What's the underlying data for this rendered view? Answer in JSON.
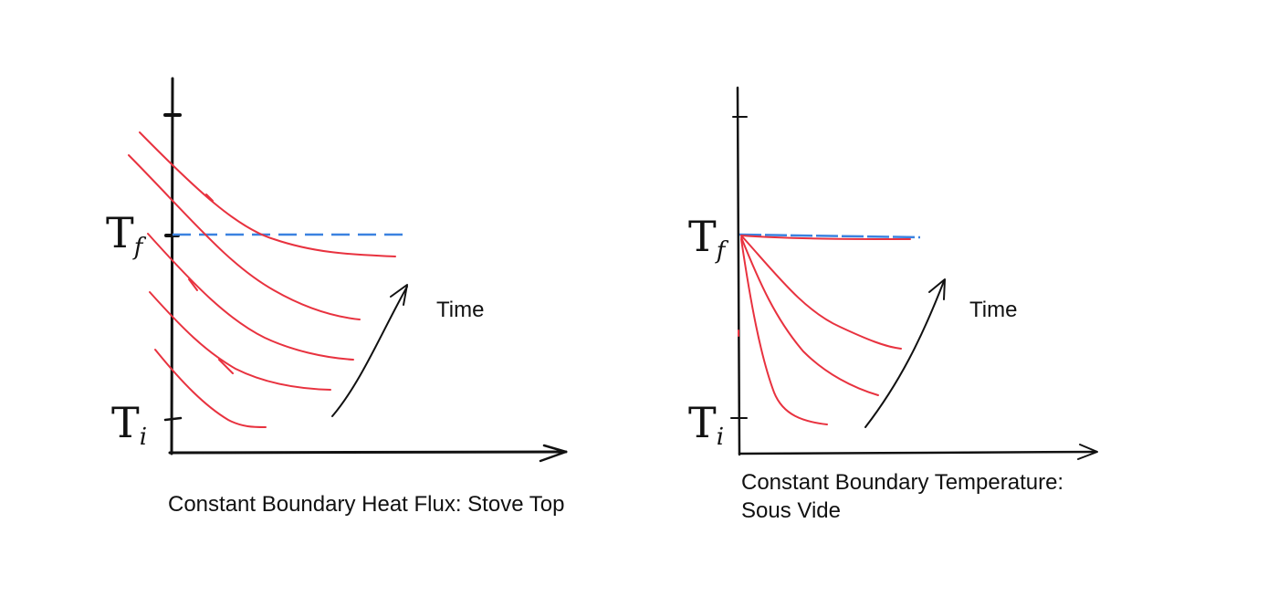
{
  "panels": [
    {
      "caption_lines": [
        "Constant Boundary Heat Flux: Stove Top"
      ],
      "arrow_label": "Time",
      "y_labels": {
        "final": {
          "main": "T",
          "sub": "f"
        },
        "initial": {
          "main": "T",
          "sub": "i"
        }
      }
    },
    {
      "caption_lines": [
        "Constant Boundary Temperature:",
        "Sous Vide"
      ],
      "arrow_label": "Time",
      "y_labels": {
        "final": {
          "main": "T",
          "sub": "f"
        },
        "initial": {
          "main": "T",
          "sub": "i"
        }
      }
    }
  ],
  "colors": {
    "curve": "#e8323f",
    "reference": "#3b82e0",
    "axis": "#111111"
  }
}
